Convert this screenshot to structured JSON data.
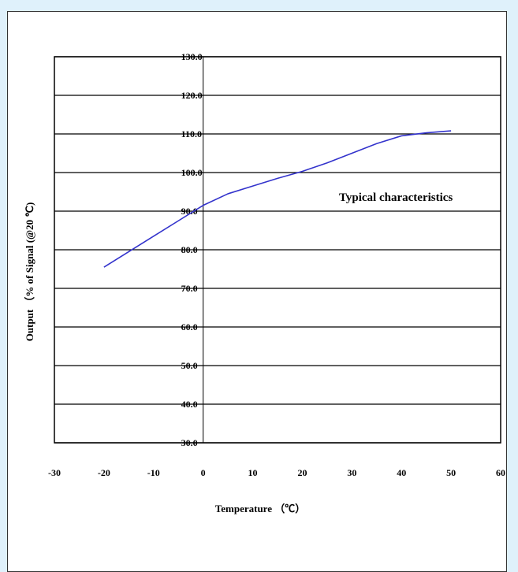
{
  "colors": {
    "page_background": "#dff1fb",
    "series_line": "#3333cc",
    "gridline": "#000000"
  },
  "chart_data": {
    "type": "line",
    "title": "",
    "xlabel": "Temperature （℃）",
    "ylabel": "Output  （% of Signal (@20 ℃)",
    "annotation": "Typical characteristics",
    "xlim": [
      -30,
      60
    ],
    "ylim": [
      30,
      130
    ],
    "x_ticks": [
      "-30",
      "-20",
      "-10",
      "0",
      "10",
      "20",
      "30",
      "40",
      "50",
      "60"
    ],
    "y_ticks": [
      "30.0",
      "40.0",
      "50.0",
      "60.0",
      "70.0",
      "80.0",
      "90.0",
      "100.0",
      "110.0",
      "120.0",
      "130.0"
    ],
    "grid": "horizontal",
    "legend": "none",
    "series": [
      {
        "x": [
          -20,
          -15,
          -10,
          -5,
          0,
          5,
          10,
          15,
          20,
          25,
          30,
          35,
          40,
          45,
          50
        ],
        "y": [
          75.5,
          79.5,
          83.5,
          87.5,
          91.5,
          94.5,
          96.5,
          98.5,
          100.3,
          102.5,
          105.0,
          107.5,
          109.5,
          110.3,
          110.8
        ]
      }
    ]
  }
}
